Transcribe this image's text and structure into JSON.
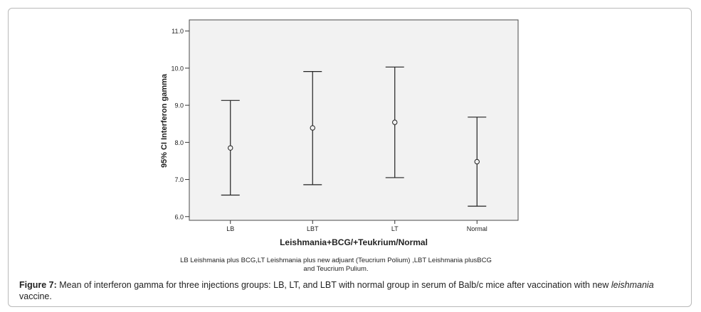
{
  "chart_data": {
    "type": "error-bar",
    "ylabel": "95% CI Interferon gamma",
    "xlabel": "Leishmania+BCG/+Teukrium/Normal",
    "ylim": [
      5.9,
      11.3
    ],
    "y_ticks": [
      "6.0",
      "7.0",
      "8.0",
      "9.0",
      "10.0",
      "11.0"
    ],
    "categories": [
      "LB",
      "LBT",
      "LT",
      "Normal"
    ],
    "means": [
      7.85,
      8.39,
      8.54,
      7.48
    ],
    "ci_lower": [
      6.58,
      6.86,
      7.05,
      6.28
    ],
    "ci_upper": [
      9.13,
      9.91,
      10.03,
      8.68
    ],
    "grid": false,
    "plot_background": "#f2f2f2",
    "note_line1": "LB Leishmania plus BCG,LT Leishmania plus new adjuant (Teucrium Polium) ,LBT Leishmania plusBCG",
    "note_line2": "and Teucrium Pulium."
  },
  "caption": {
    "label": "Figure 7:",
    "text_before": " Mean of interferon gamma for three injections groups: LB, LT, and LBT with normal group in serum of Balb/c mice after vaccination with new ",
    "text_italic": "leishmania",
    "text_after": " vaccine."
  }
}
